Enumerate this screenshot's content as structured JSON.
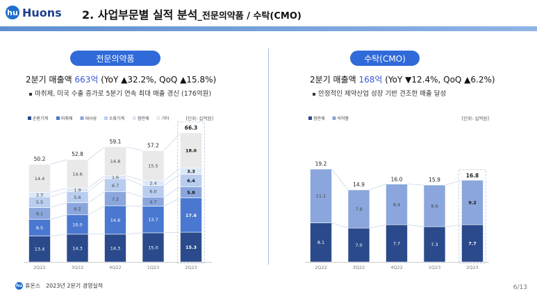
{
  "header": {
    "logo_mark": "hu",
    "logo_text": "Huons",
    "title": "2. 사업부문별 실적 분석",
    "title_sub": "_전문의약품 / 수탁(CMO)"
  },
  "left": {
    "section_label": "전문의약품",
    "headline_prefix": "2분기 매출액 ",
    "headline_value": "663억",
    "headline_suffix": " (YoY ▲32.2%, QoQ ▲15.8%)",
    "bullet": "마취제, 미국 수출 증가로 5분기 연속 최대 매출 경신 (176억원)",
    "unit": "[단위: 십억원]"
  },
  "right": {
    "section_label": "수탁(CMO)",
    "headline_prefix": "2분기 매출액 ",
    "headline_value": "168억",
    "headline_suffix": " (YoY ▼12.4%, QoQ ▲6.2%)",
    "bullet": "안정적인 제약산업 성장 기반 견조한 매출 달성",
    "unit": "[단위: 십억원]"
  },
  "chart_data": [
    {
      "type": "bar",
      "stacked": true,
      "categories": [
        "2Q22",
        "3Q22",
        "4Q22",
        "1Q23",
        "2Q23"
      ],
      "series": [
        {
          "name": "순환기계",
          "color": "#2a4a8c",
          "values": [
            13.4,
            14.3,
            14.3,
            15.0,
            15.3
          ]
        },
        {
          "name": "마취제",
          "color": "#4a78d0",
          "values": [
            8.5,
            10.0,
            14.6,
            13.7,
            17.6
          ]
        },
        {
          "name": "대사성",
          "color": "#8aa6dc",
          "values": [
            6.1,
            6.2,
            7.2,
            4.7,
            5.8
          ]
        },
        {
          "name": "소화기계",
          "color": "#b9cdef",
          "values": [
            5.5,
            5.6,
            6.7,
            6.0,
            6.4
          ]
        },
        {
          "name": "점안제",
          "color": "#dce7f8",
          "values": [
            2.3,
            1.9,
            1.6,
            2.4,
            3.3
          ]
        },
        {
          "name": "기타",
          "color": "#e9e9e9",
          "values": [
            14.4,
            14.6,
            14.8,
            15.5,
            18.0
          ]
        }
      ],
      "totals": [
        50.2,
        52.8,
        59.1,
        57.2,
        66.3
      ],
      "highlight_last": true
    },
    {
      "type": "bar",
      "stacked": true,
      "categories": [
        "2Q22",
        "3Q22",
        "4Q22",
        "1Q23",
        "2Q23"
      ],
      "series": [
        {
          "name": "점안제",
          "color": "#2a4a8c",
          "values": [
            8.1,
            7.0,
            7.7,
            7.3,
            7.7
          ]
        },
        {
          "name": "의약품",
          "color": "#8aa6dc",
          "values": [
            11.1,
            7.9,
            8.4,
            8.6,
            9.2
          ]
        }
      ],
      "totals": [
        19.2,
        14.9,
        16.0,
        15.9,
        16.8
      ],
      "highlight_last": true
    }
  ],
  "footer": {
    "mini_mark": "hu",
    "brand": "휴온스",
    "report": "2023년 2분기 경영실적",
    "page": "6/13"
  }
}
